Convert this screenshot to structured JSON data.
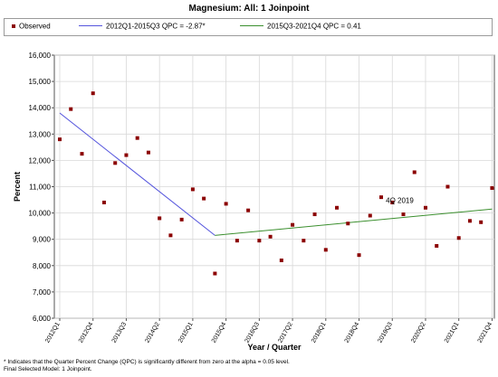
{
  "chart_data": {
    "type": "scatter",
    "title": "Magnesium: All: 1 Joinpoint",
    "xlabel": "Year / Quarter",
    "ylabel": "Percent",
    "ylim": [
      6000,
      16000
    ],
    "yticks": [
      "6,000",
      "7,000",
      "8,000",
      "9,000",
      "10,000",
      "11,000",
      "12,000",
      "13,000",
      "14,000",
      "15,000",
      "16,000"
    ],
    "xticks": [
      "2012Q1",
      "2012Q4",
      "2013Q3",
      "2014Q2",
      "2015Q1",
      "2015Q4",
      "2016Q3",
      "2017Q2",
      "2018Q1",
      "2018Q4",
      "2019Q3",
      "2020Q2",
      "2021Q1",
      "2021Q4"
    ],
    "grid": true,
    "legend_position": "top",
    "categories": [
      "2012Q1",
      "2012Q2",
      "2012Q3",
      "2012Q4",
      "2013Q1",
      "2013Q2",
      "2013Q3",
      "2013Q4",
      "2014Q1",
      "2014Q2",
      "2014Q3",
      "2014Q4",
      "2015Q1",
      "2015Q2",
      "2015Q3",
      "2015Q4",
      "2016Q1",
      "2016Q2",
      "2016Q3",
      "2016Q4",
      "2017Q1",
      "2017Q2",
      "2017Q3",
      "2017Q4",
      "2018Q1",
      "2018Q2",
      "2018Q3",
      "2018Q4",
      "2019Q1",
      "2019Q2",
      "2019Q3",
      "2019Q4",
      "2020Q1",
      "2020Q2",
      "2020Q3",
      "2020Q4",
      "2021Q1",
      "2021Q2",
      "2021Q3",
      "2021Q4"
    ],
    "series": [
      {
        "name": "Observed",
        "type": "scatter",
        "color": "#8b0000",
        "values": [
          12800,
          13950,
          12250,
          14550,
          10400,
          11900,
          12200,
          12850,
          12300,
          9800,
          9150,
          9750,
          10900,
          10550,
          7700,
          10350,
          8950,
          10100,
          8950,
          9100,
          8200,
          9550,
          8950,
          9950,
          8600,
          10200,
          9600,
          8400,
          9900,
          10600,
          10400,
          9950,
          11550,
          10200,
          8750,
          11000,
          9050,
          9700,
          9650,
          10950
        ]
      },
      {
        "name": "2012Q1-2015Q3 QPC = -2.87*",
        "type": "line",
        "color": "#5555dd",
        "x": [
          "2012Q1",
          "2015Q3"
        ],
        "values": [
          13800,
          9150
        ]
      },
      {
        "name": "2015Q3-2021Q4 QPC = 0.41",
        "type": "line",
        "color": "#3b8f2e",
        "x": [
          "2015Q3",
          "2021Q4"
        ],
        "values": [
          9150,
          10150
        ]
      }
    ],
    "annotations": [
      {
        "text": "4Q 2019",
        "x": "2019Q4",
        "y": 10250
      }
    ]
  },
  "footnote": {
    "line1": "* Indicates that the Quarter Percent Change (QPC) is significantly different from zero at the alpha = 0.05 level.",
    "line2": "Final Selected Model: 1 Joinpoint."
  }
}
